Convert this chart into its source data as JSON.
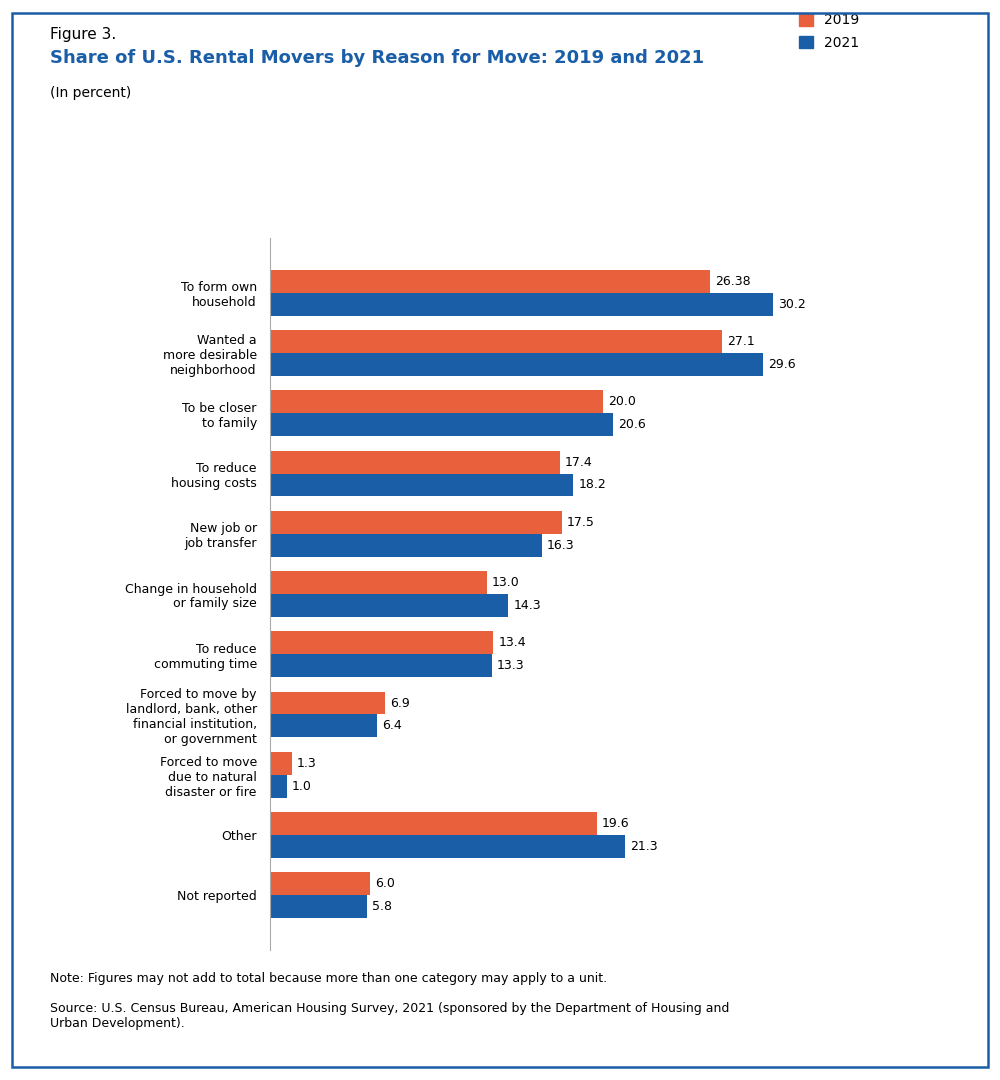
{
  "figure_label": "Figure 3.",
  "title": "Share of U.S. Rental Movers by Reason for Move: 2019 and 2021",
  "subtitle": "(In percent)",
  "categories": [
    "To form own\nhousehold",
    "Wanted a\nmore desirable\nneighborhood",
    "To be closer\nto family",
    "To reduce\nhousing costs",
    "New job or\njob transfer",
    "Change in household\nor family size",
    "To reduce\ncommuting time",
    "Forced to move by\nlandlord, bank, other\nfinancial institution,\nor government",
    "Forced to move\ndue to natural\ndisaster or fire",
    "Other",
    "Not reported"
  ],
  "values_2019": [
    26.38,
    27.1,
    20.0,
    17.4,
    17.5,
    13.0,
    13.4,
    6.9,
    1.3,
    19.6,
    6.0
  ],
  "values_2021": [
    30.2,
    29.6,
    20.6,
    18.2,
    16.3,
    14.3,
    13.3,
    6.4,
    1.0,
    21.3,
    5.8
  ],
  "color_2019": "#E8603C",
  "color_2021": "#1A5EA8",
  "bar_height": 0.38,
  "xlim": [
    0,
    36
  ],
  "legend_labels": [
    "2019",
    "2021"
  ],
  "note_text": "Note: Figures may not add to total because more than one category may apply to a unit.",
  "source_text": "Source: U.S. Census Bureau, American Housing Survey, 2021 (sponsored by the Department of Housing and\nUrban Development).",
  "background_color": "#FFFFFF",
  "border_color": "#1A5EA8",
  "title_color": "#1A5EA8",
  "figure_label_color": "#000000",
  "label_fontsize": 9,
  "value_fontsize": 9,
  "title_fontsize": 13,
  "fig_label_fontsize": 11,
  "subtitle_fontsize": 10,
  "note_fontsize": 9,
  "legend_fontsize": 10
}
